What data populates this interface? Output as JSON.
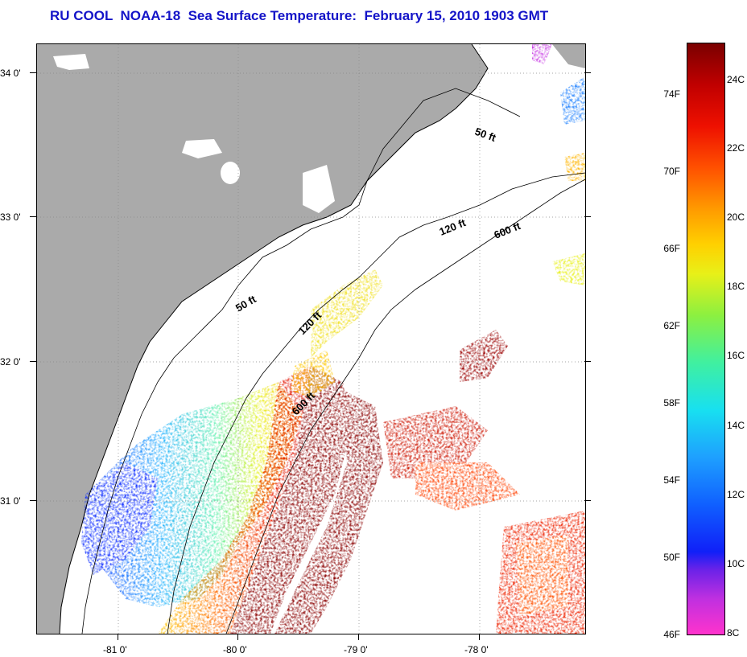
{
  "title": "RU COOL  NOAA-18  Sea Surface Temperature:  February 15, 2010 1903 GMT",
  "latitude_labels": [
    "34 0'",
    "33 0'",
    "32 0'",
    "31 0'"
  ],
  "longitude_labels": [
    "-81 0'",
    "-80 0'",
    "-79 0'",
    "-78 0'"
  ],
  "depth_contours": [
    "50 ft",
    "120 ft",
    "600 ft",
    "50 ft",
    "120 ft",
    "600 ft"
  ],
  "colorbar": {
    "fahrenheit": [
      "74F",
      "70F",
      "66F",
      "62F",
      "58F",
      "54F",
      "50F",
      "46F"
    ],
    "celsius": [
      "24C",
      "22C",
      "20C",
      "18C",
      "16C",
      "14C",
      "12C",
      "10C",
      "8C"
    ]
  },
  "colors": {
    "land": "#aaaaaa",
    "title": "#1414c8",
    "ocean_nodata": "#ffffff"
  }
}
